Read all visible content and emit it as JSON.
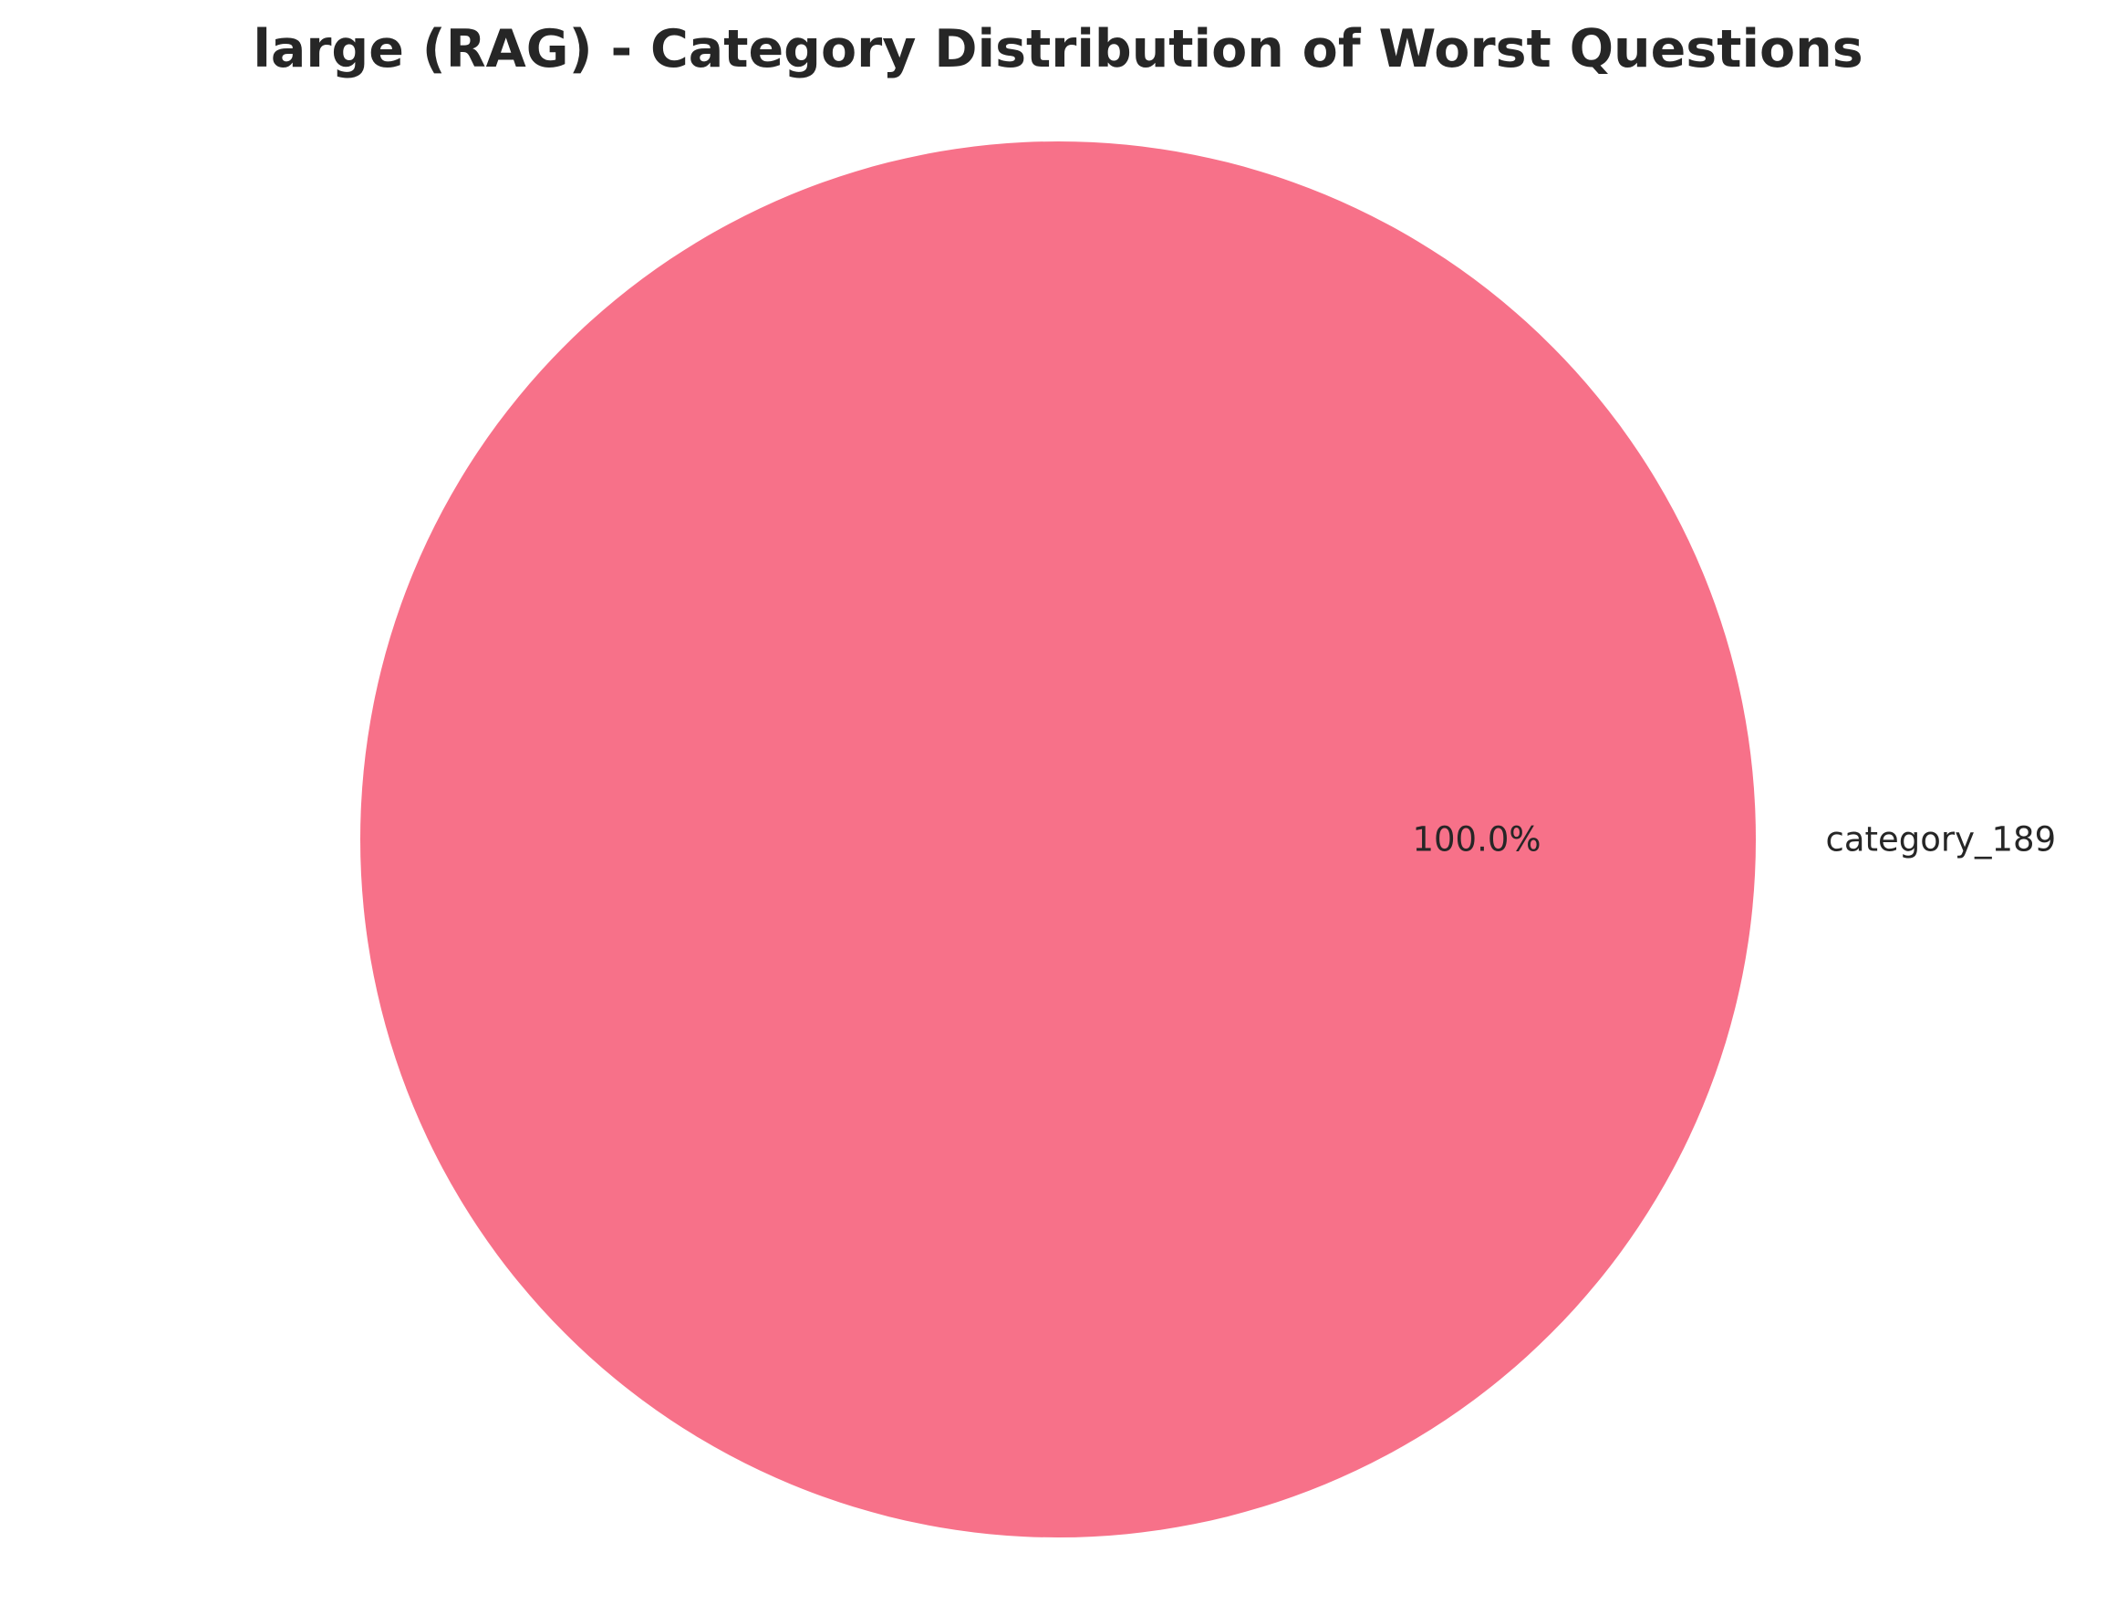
{
  "chart_data": {
    "type": "pie",
    "title": "large (RAG) - Category Distribution of Worst Questions",
    "categories": [
      "category_189"
    ],
    "values": [
      100.0
    ],
    "percent_labels": [
      "100.0%"
    ],
    "colors": [
      "#f77189"
    ],
    "legend": "none"
  }
}
